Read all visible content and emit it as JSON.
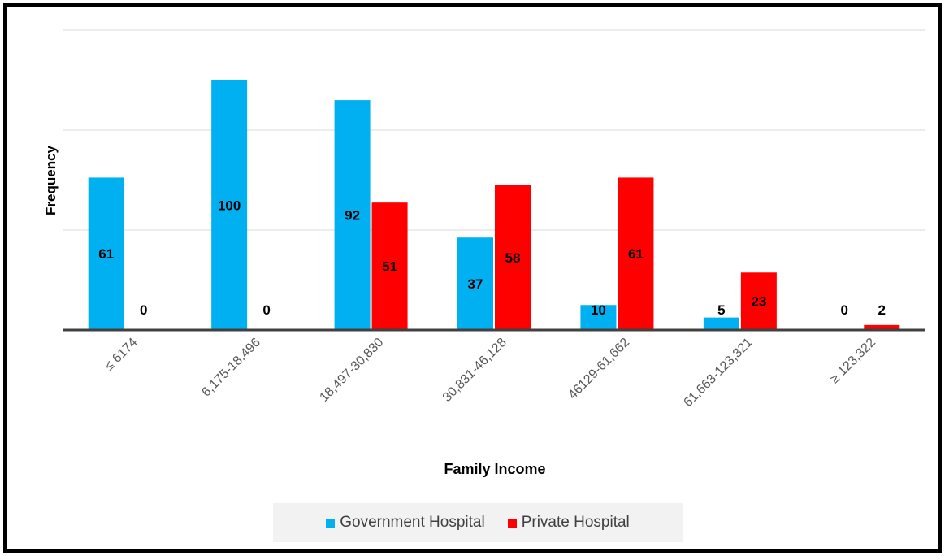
{
  "colors": {
    "government": "#00b0f0",
    "private": "#ff0000",
    "grid": "#d9d9d9",
    "axis": "#404040"
  },
  "chart_data": {
    "type": "bar",
    "title": "",
    "xlabel": "Family Income",
    "ylabel": "Frequency",
    "ylim": [
      0,
      120
    ],
    "grid": true,
    "legend_position": "bottom",
    "categories": [
      "≤ 6174",
      "6,175-18,496",
      "18,497-30,830",
      "30,831-46,128",
      "46129-61,662",
      "61,663-123,321",
      "≥ 123,322"
    ],
    "series": [
      {
        "name": "Government Hospital",
        "values": [
          61,
          100,
          92,
          37,
          10,
          5,
          0
        ]
      },
      {
        "name": "Private Hospital",
        "values": [
          0,
          0,
          51,
          58,
          61,
          23,
          2
        ]
      }
    ]
  }
}
